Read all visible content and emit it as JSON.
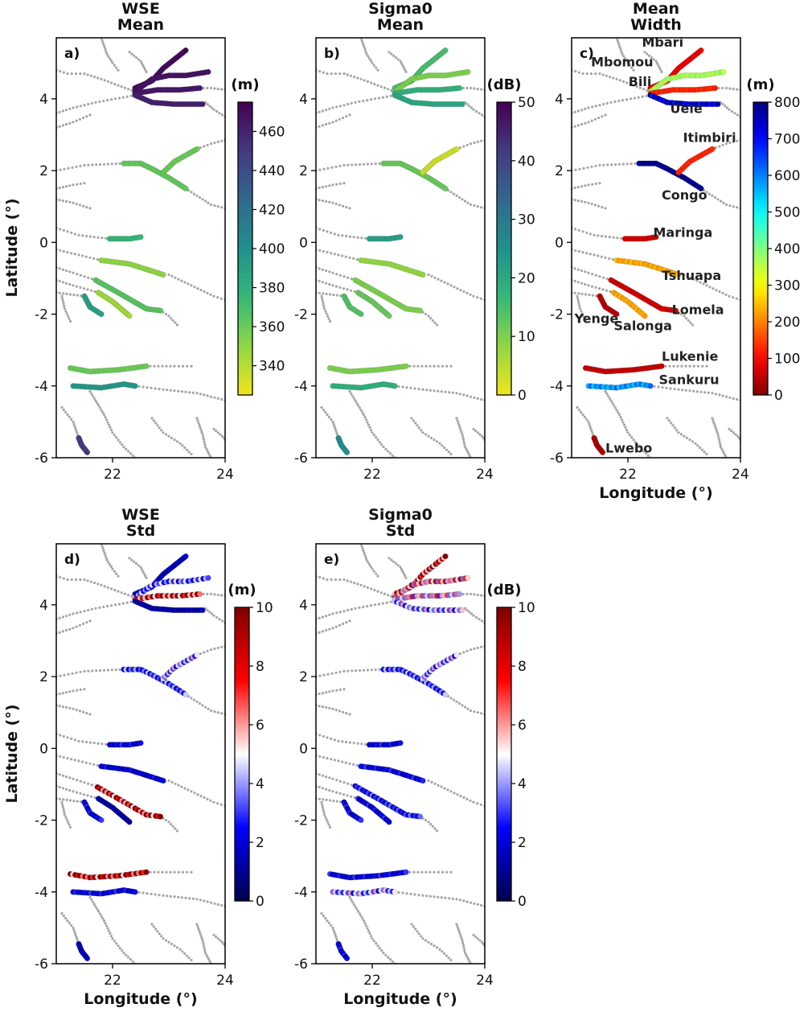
{
  "figure": {
    "x_axis_label": "Longitude (°)",
    "y_axis_label": "Latitude (°)"
  },
  "colormaps": {
    "viridis_r": [
      "#f1e51d",
      "#8fd744",
      "#35b779",
      "#21908d",
      "#31688e",
      "#443a83",
      "#440154"
    ],
    "jet": [
      "#800000",
      "#ff0000",
      "#ff8000",
      "#ffff00",
      "#80ff80",
      "#00ffff",
      "#0080ff",
      "#0000ff",
      "#000080"
    ],
    "seismic": [
      "#00004c",
      "#0000ff",
      "#ffffff",
      "#ff0000",
      "#800000"
    ],
    "background_river": "#a6a6a6"
  },
  "chart_data": [
    {
      "type": "scatter",
      "id": "a",
      "panel_label": "a)",
      "title_lines": [
        "WSE",
        "Mean"
      ],
      "unit": "(m)",
      "colormap": "viridis_r",
      "color_range": [
        325,
        475
      ],
      "color_ticks": [
        340,
        360,
        380,
        400,
        420,
        440,
        460
      ],
      "xlim": [
        21,
        24
      ],
      "ylim": [
        -6,
        5.7
      ],
      "x_ticks": [
        22,
        24
      ],
      "y_ticks": [
        4,
        2,
        0,
        -2,
        -4,
        -6
      ],
      "show_xlabel": false,
      "show_ylabel": true,
      "reach_values": {
        "Mbari": 472,
        "Mbomou": 468,
        "Bili": 466,
        "Uele": 462,
        "Congo": 362,
        "Itimbiri": 360,
        "Maringa": 375,
        "Tshuapa": 350,
        "Salonga": 345,
        "Lomela": 365,
        "Yenge": 390,
        "Lukenie": 360,
        "Sankuru": 395,
        "Lwebo": 450
      }
    },
    {
      "type": "scatter",
      "id": "b",
      "panel_label": "b)",
      "title_lines": [
        "Sigma0",
        "Mean"
      ],
      "unit": "(dB)",
      "colormap": "viridis_r",
      "color_range": [
        0,
        50
      ],
      "color_ticks": [
        0,
        10,
        20,
        30,
        40,
        50
      ],
      "xlim": [
        21,
        24
      ],
      "ylim": [
        -6,
        5.7
      ],
      "x_ticks": [
        22,
        24
      ],
      "y_ticks": [
        4,
        2,
        0,
        -2,
        -4,
        -6
      ],
      "show_xlabel": false,
      "show_ylabel": false,
      "reach_values": {
        "Mbari": 15,
        "Mbomou": 10,
        "Bili": 18,
        "Uele": 20,
        "Congo": 12,
        "Itimbiri": 3,
        "Maringa": 22,
        "Tshuapa": 8,
        "Salonga": 12,
        "Lomela": 10,
        "Yenge": 14,
        "Lukenie": 10,
        "Sankuru": 18,
        "Lwebo": 25
      }
    },
    {
      "type": "scatter",
      "id": "c",
      "panel_label": "c)",
      "title_lines": [
        "Mean",
        "Width"
      ],
      "unit": "(m)",
      "colormap": "jet",
      "color_range": [
        0,
        800
      ],
      "color_ticks": [
        0,
        100,
        200,
        300,
        400,
        500,
        600,
        700,
        800
      ],
      "xlim": [
        21,
        24
      ],
      "ylim": [
        -6,
        5.7
      ],
      "x_ticks": [
        22,
        24
      ],
      "y_ticks": [
        4,
        2,
        0,
        -2,
        -4,
        -6
      ],
      "show_xlabel": true,
      "show_ylabel": false,
      "river_names": [
        "Mbari",
        "Mbomou",
        "Bili",
        "Uele",
        "Itimbiri",
        "Congo",
        "Maringa",
        "Tshuapa",
        "Yenge",
        "Salonga",
        "Lomela",
        "Lukenie",
        "Sankuru",
        "Lwebo"
      ],
      "reach_values": {
        "Mbari": 80,
        "Mbomou": 350,
        "Bili": 120,
        "Uele": 700,
        "Congo": 780,
        "Itimbiri": 120,
        "Maringa": 60,
        "Tshuapa": 220,
        "Salonga": 220,
        "Lomela": 60,
        "Yenge": 40,
        "Lukenie": 50,
        "Sankuru": 550,
        "Lwebo": 30
      }
    },
    {
      "type": "scatter",
      "id": "d",
      "panel_label": "d)",
      "title_lines": [
        "WSE",
        "Std"
      ],
      "unit": "(m)",
      "colormap": "seismic",
      "color_range": [
        0,
        10
      ],
      "color_ticks": [
        0,
        2,
        4,
        6,
        8,
        10
      ],
      "xlim": [
        21,
        24
      ],
      "ylim": [
        -6,
        5.7
      ],
      "x_ticks": [
        22,
        24
      ],
      "y_ticks": [
        4,
        2,
        0,
        -2,
        -4,
        -6
      ],
      "show_xlabel": true,
      "show_ylabel": true,
      "reach_values": {
        "Mbari": 1.5,
        "Mbomou": 3.5,
        "Bili": 8,
        "Uele": 1.2,
        "Congo": 3,
        "Itimbiri": 4,
        "Maringa": 2,
        "Tshuapa": 1.8,
        "Salonga": 1.2,
        "Lomela": 8.5,
        "Yenge": 2,
        "Lukenie": 9,
        "Sankuru": 2,
        "Lwebo": 1.5
      }
    },
    {
      "type": "scatter",
      "id": "e",
      "panel_label": "e)",
      "title_lines": [
        "Sigma0",
        "Std"
      ],
      "unit": "(dB)",
      "colormap": "seismic",
      "color_range": [
        0,
        10
      ],
      "color_ticks": [
        0,
        2,
        4,
        6,
        8,
        10
      ],
      "xlim": [
        21,
        24
      ],
      "ylim": [
        -6,
        5.7
      ],
      "x_ticks": [
        22,
        24
      ],
      "y_ticks": [
        4,
        2,
        0,
        -2,
        -4,
        -6
      ],
      "show_xlabel": true,
      "show_ylabel": false,
      "reach_values": {
        "Mbari": 8,
        "Mbomou": 6,
        "Bili": 5,
        "Uele": 4,
        "Congo": 3,
        "Itimbiri": 4,
        "Maringa": 2,
        "Tshuapa": 2,
        "Salonga": 2,
        "Lomela": 2.5,
        "Yenge": 2,
        "Lukenie": 2,
        "Sankuru": 4,
        "Lwebo": 2
      }
    }
  ],
  "rivers": {
    "Mbari": [
      [
        22.4,
        4.3
      ],
      [
        22.7,
        4.5
      ],
      [
        22.9,
        4.85
      ],
      [
        23.3,
        5.35
      ]
    ],
    "Mbomou": [
      [
        22.4,
        4.2
      ],
      [
        22.7,
        4.55
      ],
      [
        23.0,
        4.65
      ],
      [
        23.3,
        4.65
      ],
      [
        23.7,
        4.75
      ]
    ],
    "Bili": [
      [
        22.4,
        4.15
      ],
      [
        22.8,
        4.25
      ],
      [
        23.2,
        4.25
      ],
      [
        23.55,
        4.3
      ]
    ],
    "Uele": [
      [
        22.4,
        4.1
      ],
      [
        22.7,
        3.9
      ],
      [
        23.1,
        3.85
      ],
      [
        23.6,
        3.85
      ]
    ],
    "Congo": [
      [
        22.2,
        2.2
      ],
      [
        22.5,
        2.2
      ],
      [
        22.7,
        2.05
      ],
      [
        23.0,
        1.8
      ],
      [
        23.3,
        1.5
      ]
    ],
    "Itimbiri": [
      [
        22.9,
        1.95
      ],
      [
        23.1,
        2.25
      ],
      [
        23.5,
        2.6
      ]
    ],
    "Maringa": [
      [
        21.95,
        0.1
      ],
      [
        22.3,
        0.1
      ],
      [
        22.5,
        0.15
      ]
    ],
    "Tshuapa": [
      [
        21.8,
        -0.5
      ],
      [
        22.3,
        -0.6
      ],
      [
        22.9,
        -0.9
      ]
    ],
    "Lomela": [
      [
        21.7,
        -1.05
      ],
      [
        22.1,
        -1.4
      ],
      [
        22.6,
        -1.85
      ],
      [
        22.85,
        -1.9
      ]
    ],
    "Salonga": [
      [
        21.75,
        -1.4
      ],
      [
        22.0,
        -1.65
      ],
      [
        22.3,
        -2.05
      ]
    ],
    "Yenge": [
      [
        21.5,
        -1.5
      ],
      [
        21.6,
        -1.8
      ],
      [
        21.8,
        -2.0
      ]
    ],
    "Lukenie": [
      [
        21.25,
        -3.5
      ],
      [
        21.6,
        -3.6
      ],
      [
        22.1,
        -3.55
      ],
      [
        22.6,
        -3.45
      ]
    ],
    "Sankuru": [
      [
        21.3,
        -4.0
      ],
      [
        21.8,
        -4.05
      ],
      [
        22.2,
        -3.95
      ],
      [
        22.4,
        -4.0
      ]
    ],
    "Lwebo": [
      [
        21.4,
        -5.45
      ],
      [
        21.45,
        -5.65
      ],
      [
        21.55,
        -5.85
      ]
    ]
  },
  "background_rivers": [
    [
      [
        21.0,
        4.8
      ],
      [
        21.2,
        4.7
      ],
      [
        21.5,
        4.7
      ],
      [
        21.8,
        4.55
      ],
      [
        22.4,
        4.2
      ]
    ],
    [
      [
        21.0,
        3.6
      ],
      [
        21.3,
        3.75
      ],
      [
        21.7,
        3.9
      ],
      [
        22.4,
        4.1
      ]
    ],
    [
      [
        21.0,
        3.2
      ],
      [
        21.3,
        3.35
      ],
      [
        21.6,
        3.55
      ]
    ],
    [
      [
        21.8,
        5.7
      ],
      [
        21.9,
        5.25
      ],
      [
        22.0,
        5.0
      ],
      [
        22.1,
        4.8
      ]
    ],
    [
      [
        22.3,
        5.3
      ],
      [
        22.5,
        5.05
      ],
      [
        22.6,
        4.75
      ]
    ],
    [
      [
        23.65,
        3.9
      ],
      [
        23.8,
        3.7
      ],
      [
        24.0,
        3.5
      ]
    ],
    [
      [
        23.55,
        4.3
      ],
      [
        23.75,
        4.3
      ],
      [
        24.0,
        4.25
      ]
    ],
    [
      [
        21.0,
        2.0
      ],
      [
        21.5,
        2.15
      ],
      [
        22.2,
        2.2
      ]
    ],
    [
      [
        23.5,
        2.6
      ],
      [
        23.75,
        2.75
      ],
      [
        24.0,
        2.85
      ]
    ],
    [
      [
        23.3,
        1.5
      ],
      [
        23.55,
        1.25
      ],
      [
        23.75,
        1.05
      ],
      [
        24.0,
        0.95
      ]
    ],
    [
      [
        21.0,
        1.5
      ],
      [
        21.3,
        1.6
      ],
      [
        21.5,
        1.65
      ]
    ],
    [
      [
        21.0,
        1.2
      ],
      [
        21.3,
        1.1
      ],
      [
        21.6,
        0.95
      ]
    ],
    [
      [
        21.0,
        0.4
      ],
      [
        21.4,
        0.2
      ],
      [
        21.95,
        0.1
      ]
    ],
    [
      [
        21.0,
        -0.2
      ],
      [
        21.4,
        -0.35
      ],
      [
        21.8,
        -0.5
      ]
    ],
    [
      [
        21.0,
        -0.7
      ],
      [
        21.3,
        -0.85
      ],
      [
        21.7,
        -1.05
      ]
    ],
    [
      [
        21.0,
        -1.05
      ],
      [
        21.3,
        -1.2
      ],
      [
        21.75,
        -1.4
      ]
    ],
    [
      [
        21.0,
        -1.4
      ],
      [
        21.25,
        -1.45
      ],
      [
        21.5,
        -1.5
      ]
    ],
    [
      [
        21.1,
        -1.5
      ],
      [
        21.15,
        -1.85
      ],
      [
        21.25,
        -2.2
      ]
    ],
    [
      [
        22.85,
        -1.9
      ],
      [
        23.0,
        -2.05
      ],
      [
        23.15,
        -2.3
      ]
    ],
    [
      [
        23.0,
        -0.9
      ],
      [
        23.4,
        -1.2
      ],
      [
        23.8,
        -1.5
      ],
      [
        24.0,
        -1.6
      ]
    ],
    [
      [
        22.6,
        -3.45
      ],
      [
        23.1,
        -3.45
      ],
      [
        23.4,
        -3.45
      ]
    ],
    [
      [
        22.4,
        -4.0
      ],
      [
        22.9,
        -4.1
      ],
      [
        23.5,
        -4.2
      ],
      [
        24.0,
        -4.4
      ]
    ],
    [
      [
        21.6,
        -4.15
      ],
      [
        21.85,
        -4.8
      ],
      [
        22.0,
        -5.3
      ],
      [
        22.2,
        -5.7
      ],
      [
        22.4,
        -6.0
      ]
    ],
    [
      [
        21.1,
        -4.6
      ],
      [
        21.3,
        -5.0
      ],
      [
        21.4,
        -5.45
      ]
    ],
    [
      [
        22.7,
        -4.9
      ],
      [
        22.9,
        -5.3
      ],
      [
        23.2,
        -5.6
      ],
      [
        23.4,
        -5.9
      ]
    ],
    [
      [
        23.5,
        -4.9
      ],
      [
        23.6,
        -5.35
      ],
      [
        23.65,
        -5.7
      ],
      [
        23.75,
        -6.0
      ]
    ],
    [
      [
        23.8,
        -5.2
      ],
      [
        23.95,
        -5.4
      ],
      [
        24.0,
        -5.5
      ]
    ]
  ],
  "standard_deviation_pattern": [
    0.7,
    1.3,
    0.8,
    1.5,
    0.6,
    1.2,
    0.9,
    1.4,
    0.7,
    1.1
  ]
}
